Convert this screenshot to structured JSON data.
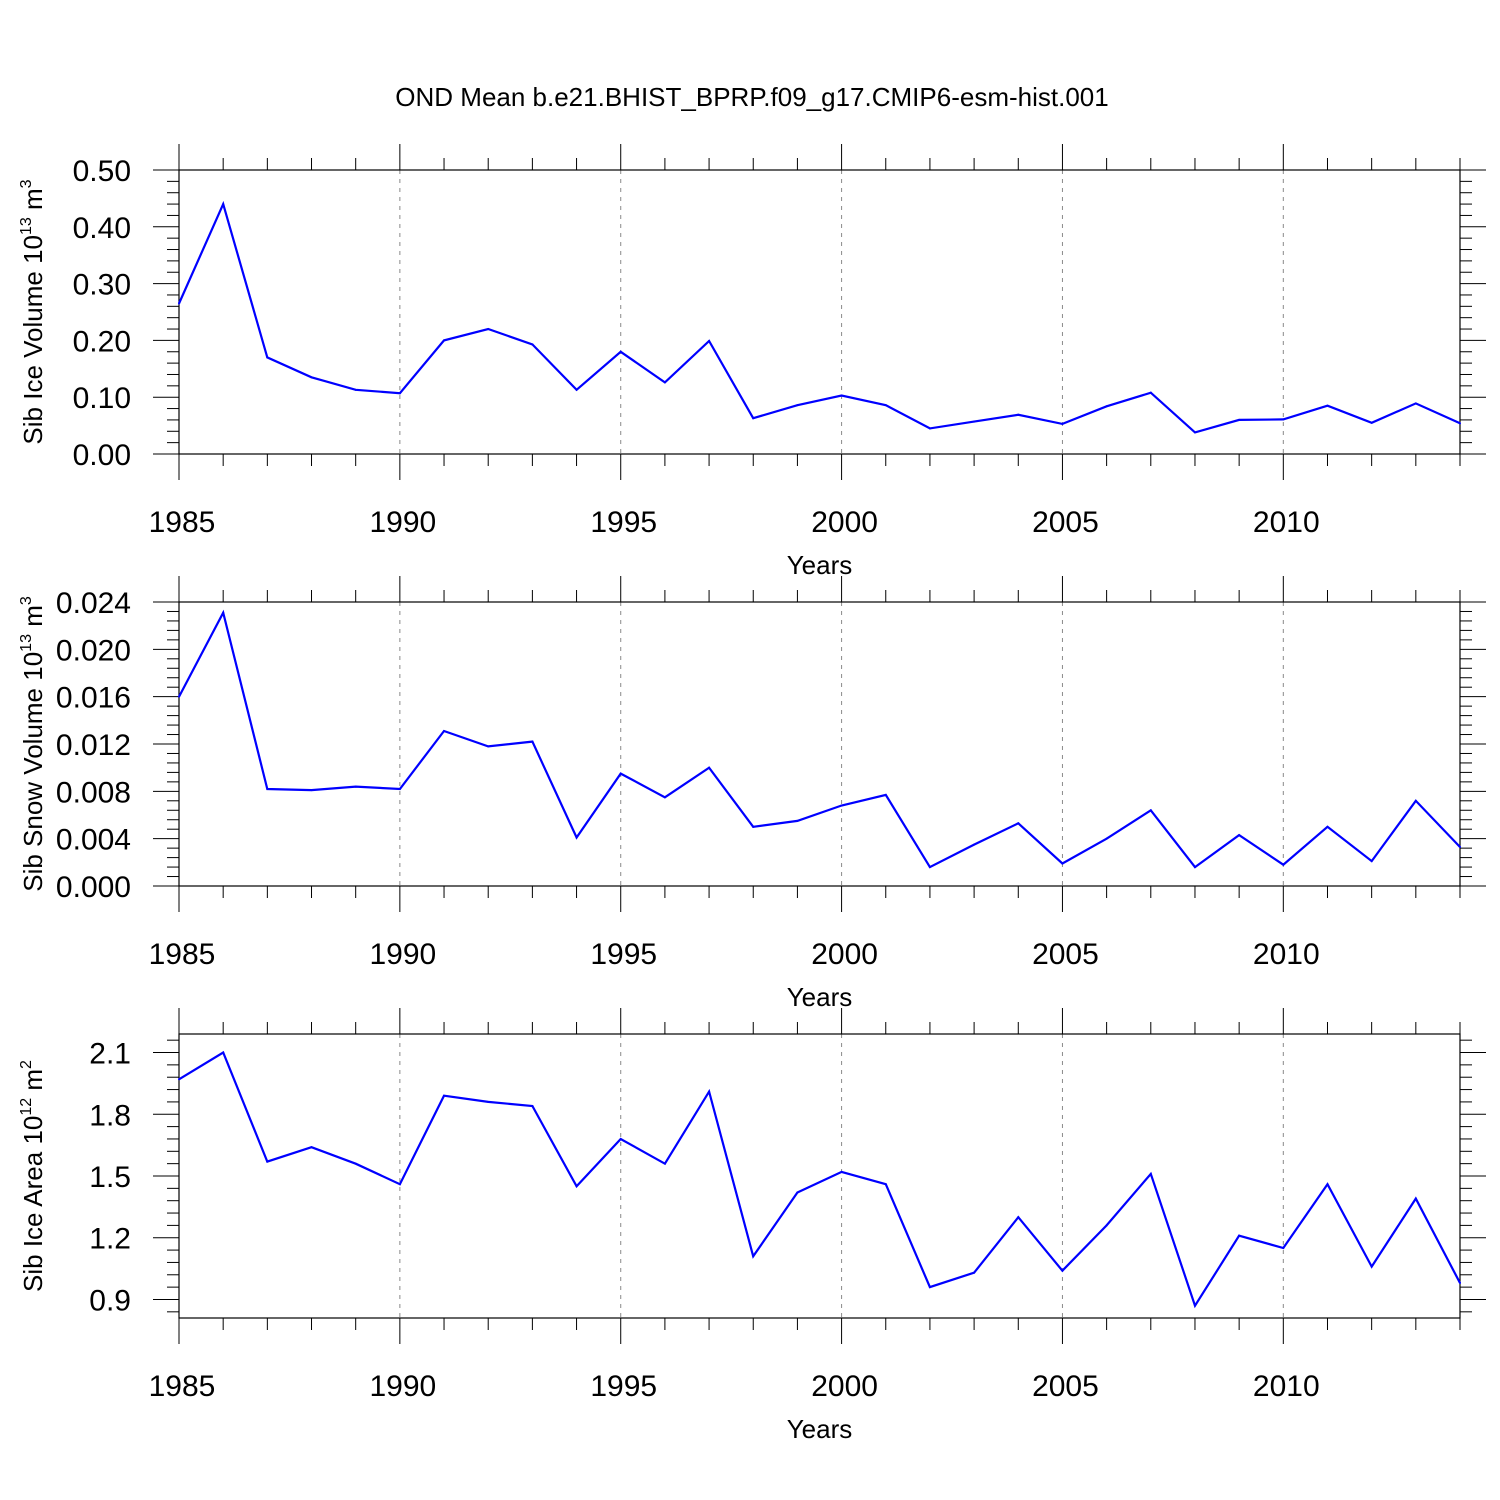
{
  "title": "OND Mean b.e21.BHIST_BPRP.f09_g17.CMIP6-esm-hist.001",
  "chart_data": [
    {
      "type": "line",
      "title": "OND Mean b.e21.BHIST_BPRP.f09_g17.CMIP6-esm-hist.001",
      "xlabel": "Years",
      "ylabel": {
        "base": "Sib Ice Volume 10",
        "exp": "13",
        "unit": " m",
        "unit_exp": "3"
      },
      "x": [
        1985,
        1986,
        1987,
        1988,
        1989,
        1990,
        1991,
        1992,
        1993,
        1994,
        1995,
        1996,
        1997,
        1998,
        1999,
        2000,
        2001,
        2002,
        2003,
        2004,
        2005,
        2006,
        2007,
        2008,
        2009,
        2010,
        2011,
        2012,
        2013,
        2014
      ],
      "series": [
        {
          "name": "Sib Ice Volume",
          "color": "#0000ff",
          "values": [
            0.265,
            0.44,
            0.17,
            0.135,
            0.113,
            0.107,
            0.2,
            0.22,
            0.193,
            0.113,
            0.18,
            0.126,
            0.199,
            0.063,
            0.086,
            0.103,
            0.086,
            0.045,
            0.057,
            0.069,
            0.053,
            0.084,
            0.108,
            0.038,
            0.06,
            0.061,
            0.085,
            0.055,
            0.089,
            0.054
          ]
        }
      ],
      "xlim": [
        1985,
        2014
      ],
      "ylim": [
        0.0,
        0.5
      ],
      "yticks": [
        0.0,
        0.1,
        0.2,
        0.3,
        0.4,
        0.5
      ],
      "ytick_labels": [
        "0.00",
        "0.10",
        "0.20",
        "0.30",
        "0.40",
        "0.50"
      ],
      "xticks": [
        1985,
        1990,
        1995,
        2000,
        2005,
        2010
      ],
      "xtick_labels": [
        "1985",
        "1990",
        "1995",
        "2000",
        "2005",
        "2010"
      ],
      "grid": "vertical dashed at major x ticks"
    },
    {
      "type": "line",
      "xlabel": "Years",
      "ylabel": {
        "base": "Sib Snow Volume 10",
        "exp": "13",
        "unit": " m",
        "unit_exp": "3"
      },
      "x": [
        1985,
        1986,
        1987,
        1988,
        1989,
        1990,
        1991,
        1992,
        1993,
        1994,
        1995,
        1996,
        1997,
        1998,
        1999,
        2000,
        2001,
        2002,
        2003,
        2004,
        2005,
        2006,
        2007,
        2008,
        2009,
        2010,
        2011,
        2012,
        2013,
        2014
      ],
      "series": [
        {
          "name": "Sib Snow Volume",
          "color": "#0000ff",
          "values": [
            0.016,
            0.0231,
            0.0082,
            0.0081,
            0.0084,
            0.0082,
            0.0131,
            0.0118,
            0.0122,
            0.0041,
            0.0095,
            0.0075,
            0.01,
            0.005,
            0.0055,
            0.0068,
            0.0077,
            0.0016,
            0.0035,
            0.0053,
            0.0019,
            0.004,
            0.0064,
            0.0016,
            0.0043,
            0.0018,
            0.005,
            0.0021,
            0.0072,
            0.0033
          ]
        }
      ],
      "xlim": [
        1985,
        2014
      ],
      "ylim": [
        0.0,
        0.024
      ],
      "yticks": [
        0.0,
        0.004,
        0.008,
        0.012,
        0.016,
        0.02,
        0.024
      ],
      "ytick_labels": [
        "0.000",
        "0.004",
        "0.008",
        "0.012",
        "0.016",
        "0.020",
        "0.024"
      ],
      "xticks": [
        1985,
        1990,
        1995,
        2000,
        2005,
        2010
      ],
      "xtick_labels": [
        "1985",
        "1990",
        "1995",
        "2000",
        "2005",
        "2010"
      ],
      "grid": "vertical dashed at major x ticks"
    },
    {
      "type": "line",
      "xlabel": "Years",
      "ylabel": {
        "base": "Sib Ice Area 10",
        "exp": "12",
        "unit": " m",
        "unit_exp": "2"
      },
      "x": [
        1985,
        1986,
        1987,
        1988,
        1989,
        1990,
        1991,
        1992,
        1993,
        1994,
        1995,
        1996,
        1997,
        1998,
        1999,
        2000,
        2001,
        2002,
        2003,
        2004,
        2005,
        2006,
        2007,
        2008,
        2009,
        2010,
        2011,
        2012,
        2013,
        2014
      ],
      "series": [
        {
          "name": "Sib Ice Area",
          "color": "#0000ff",
          "values": [
            1.97,
            2.1,
            1.57,
            1.64,
            1.56,
            1.46,
            1.89,
            1.86,
            1.84,
            1.45,
            1.68,
            1.56,
            1.91,
            1.11,
            1.42,
            1.52,
            1.46,
            0.96,
            1.03,
            1.3,
            1.04,
            1.26,
            1.51,
            0.87,
            1.21,
            1.15,
            1.46,
            1.06,
            1.39,
            0.98
          ]
        }
      ],
      "xlim": [
        1985,
        2014
      ],
      "ylim": [
        0.81,
        2.19
      ],
      "yticks": [
        0.9,
        1.2,
        1.5,
        1.8,
        2.1
      ],
      "ytick_labels": [
        "0.9",
        "1.2",
        "1.5",
        "1.8",
        "2.1"
      ],
      "xticks": [
        1985,
        1990,
        1995,
        2000,
        2005,
        2010
      ],
      "xtick_labels": [
        "1985",
        "1990",
        "1995",
        "2000",
        "2005",
        "2010"
      ],
      "grid": "vertical dashed at major x ticks"
    }
  ]
}
